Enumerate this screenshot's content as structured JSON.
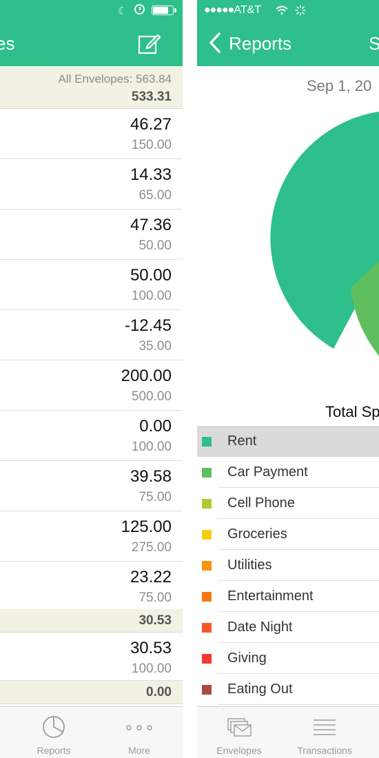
{
  "left": {
    "nav_title": "es",
    "summary": {
      "all_envelopes": "All Envelopes: 563.84",
      "total": "533.31"
    },
    "envelopes": [
      {
        "remaining": "46.27",
        "budget": "150.00"
      },
      {
        "remaining": "14.33",
        "budget": "65.00"
      },
      {
        "remaining": "47.36",
        "budget": "50.00"
      },
      {
        "remaining": "50.00",
        "budget": "100.00"
      },
      {
        "remaining": "-12.45",
        "budget": "35.00"
      },
      {
        "remaining": "200.00",
        "budget": "500.00"
      },
      {
        "remaining": "0.00",
        "budget": "100.00"
      },
      {
        "remaining": "39.58",
        "budget": "75.00"
      },
      {
        "remaining": "125.00",
        "budget": "275.00"
      },
      {
        "remaining": "23.22",
        "budget": "75.00"
      }
    ],
    "group2": {
      "total": "30.53",
      "envelopes": [
        {
          "remaining": "30.53",
          "budget": "100.00"
        }
      ]
    },
    "group3": {
      "total": "0.00"
    },
    "tabbar": {
      "reports": "Reports",
      "more": "More"
    }
  },
  "right": {
    "status": {
      "carrier": "AT&T",
      "signal_dots": "●●●●●"
    },
    "nav": {
      "back": "Reports",
      "title": "S"
    },
    "date": "Sep 1, 20",
    "total_label": "Total Sp",
    "legend": [
      {
        "label": "Rent",
        "color": "#2ebf8a",
        "selected": true
      },
      {
        "label": "Car Payment",
        "color": "#5fbf5f"
      },
      {
        "label": "Cell Phone",
        "color": "#b5c934"
      },
      {
        "label": "Groceries",
        "color": "#f5cf0c"
      },
      {
        "label": "Utilities",
        "color": "#f7930d"
      },
      {
        "label": "Entertainment",
        "color": "#f57c12"
      },
      {
        "label": "Date Night",
        "color": "#f6582a"
      },
      {
        "label": "Giving",
        "color": "#f23a2f"
      },
      {
        "label": "Eating Out",
        "color": "#a94b3f"
      }
    ],
    "tabbar": {
      "envelopes": "Envelopes",
      "transactions": "Transactions"
    }
  },
  "colors": {
    "accent": "#2ebf8a",
    "group_header": "#f1f1e4",
    "selected_row": "#dadada"
  }
}
